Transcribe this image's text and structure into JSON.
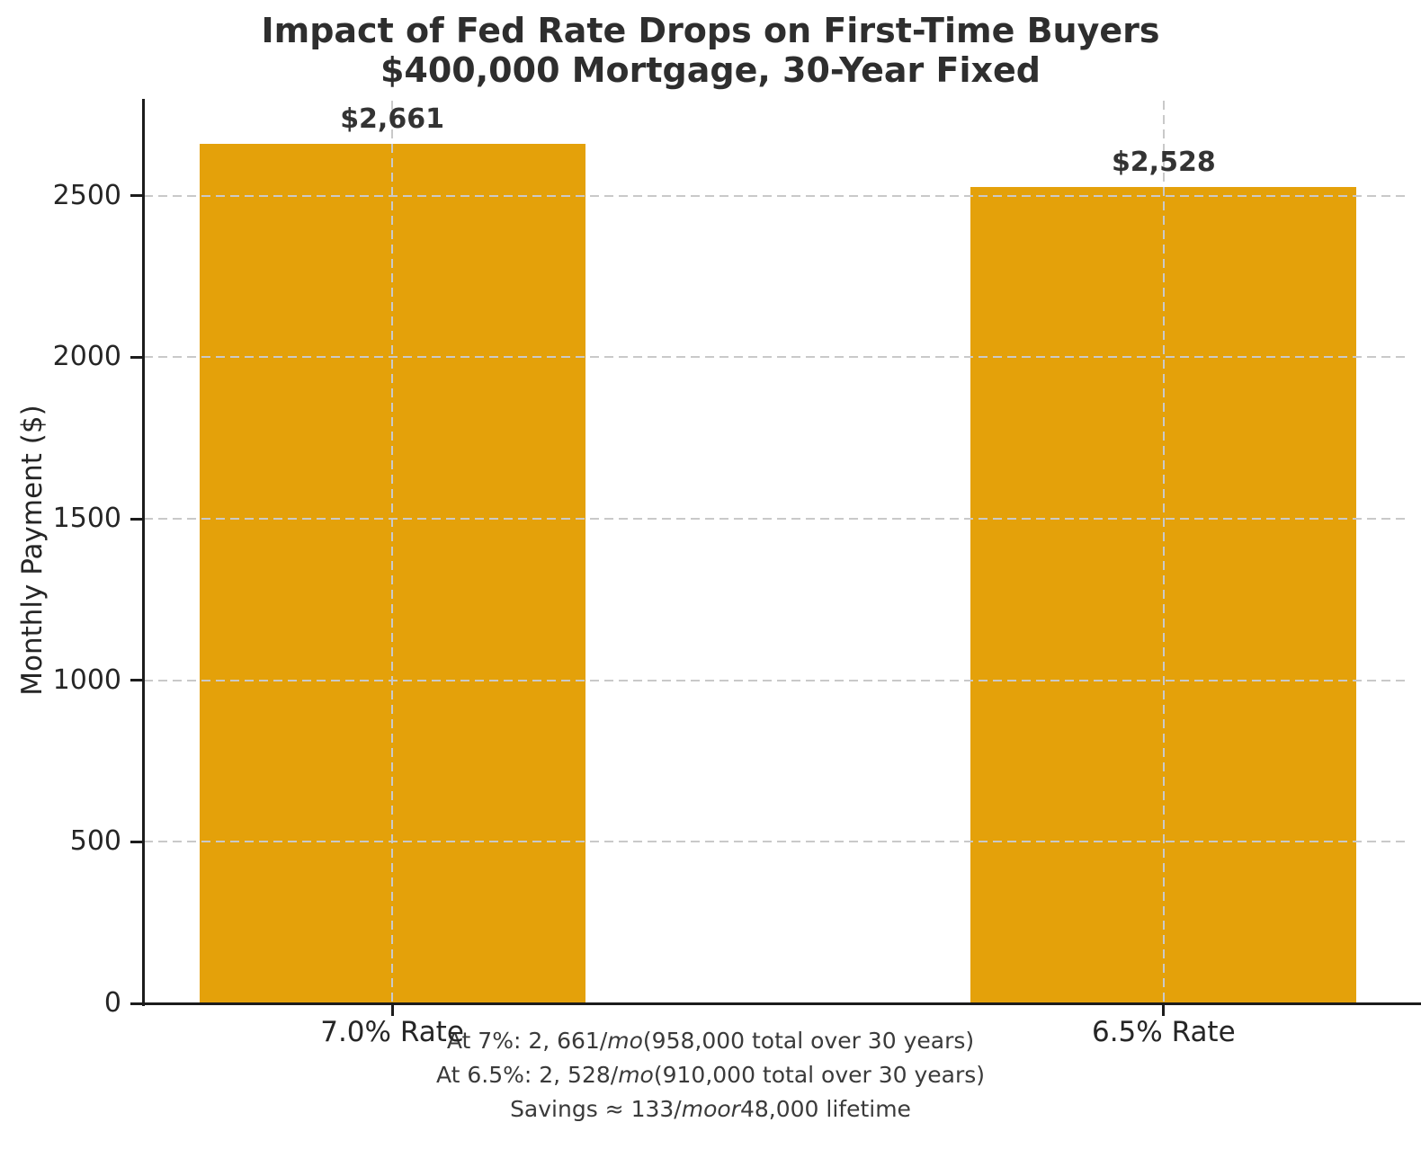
{
  "chart_data": {
    "type": "bar",
    "title": "Impact of Fed Rate Drops on First-Time Buyers",
    "subtitle": "$400,000 Mortgage, 30-Year Fixed",
    "categories": [
      "7.0% Rate",
      "6.5% Rate"
    ],
    "values": [
      2661,
      2528
    ],
    "bar_value_labels": [
      "$2,661",
      "$2,528"
    ],
    "xlabel": "",
    "ylabel": "Monthly Payment ($)",
    "yticks": [
      0,
      500,
      1000,
      1500,
      2000,
      2500
    ],
    "ylim": [
      0,
      2800
    ],
    "grid": "dashed gray gridlines, horizontal at y-ticks and vertical at bar centers, drawn above bars",
    "legend": "none",
    "colors": {
      "bar": "#E4A10A",
      "grid": "#c9c9c9",
      "spine": "#1c1c1c",
      "title_text": "#2e2e2e",
      "tick_text": "#262626",
      "annotation_text": "#3a3a3a",
      "background": "#ffffff"
    },
    "annotations": [
      {
        "segments": [
          {
            "t": "At 7%: 2, 661/",
            "italic": false
          },
          {
            "t": "mo",
            "italic": true
          },
          {
            "t": "(958,000 total over 30 years)",
            "italic": false
          }
        ]
      },
      {
        "segments": [
          {
            "t": "At 6.5%: 2, 528/",
            "italic": false
          },
          {
            "t": "mo",
            "italic": true
          },
          {
            "t": "(910,000 total over 30 years)",
            "italic": false
          }
        ]
      },
      {
        "segments": [
          {
            "t": "Savings ≈ 133/",
            "italic": false
          },
          {
            "t": "moor",
            "italic": true
          },
          {
            "t": "48,000 lifetime",
            "italic": false
          }
        ]
      }
    ]
  }
}
